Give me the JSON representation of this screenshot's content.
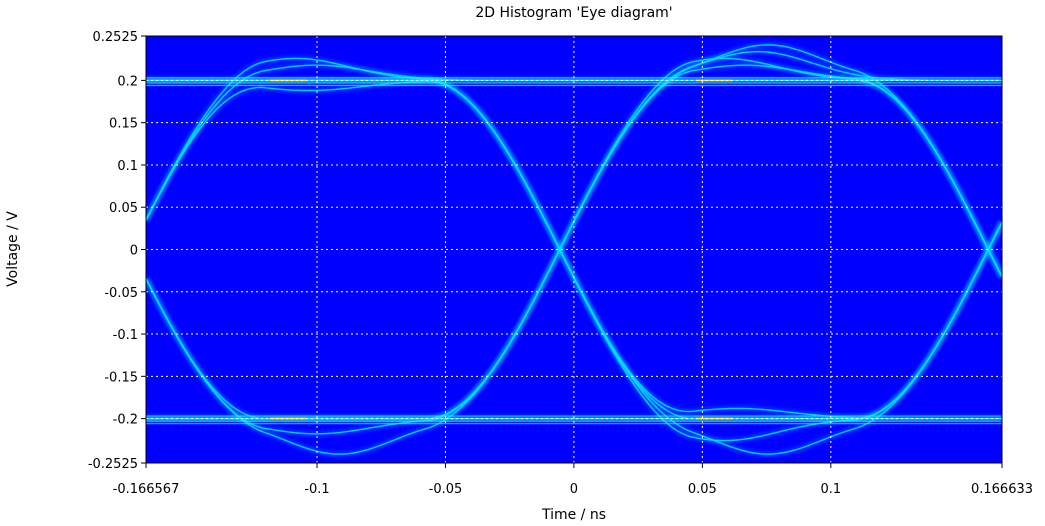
{
  "chart_data": {
    "type": "heatmap",
    "title": "2D Histogram 'Eye diagram'",
    "xlabel": "Time / ns",
    "ylabel": "Voltage / V",
    "xlim": [
      -0.166567,
      0.166633
    ],
    "ylim": [
      -0.2525,
      0.2525
    ],
    "xticks": [
      {
        "value": -0.166567,
        "label": "-0.166567"
      },
      {
        "value": -0.1,
        "label": "-0.1"
      },
      {
        "value": -0.05,
        "label": "-0.05"
      },
      {
        "value": 0,
        "label": "0"
      },
      {
        "value": 0.05,
        "label": "0.05"
      },
      {
        "value": 0.1,
        "label": "0.1"
      },
      {
        "value": 0.166633,
        "label": "0.166633"
      }
    ],
    "yticks": [
      {
        "value": 0.2525,
        "label": "0.2525"
      },
      {
        "value": 0.2,
        "label": "0.2"
      },
      {
        "value": 0.15,
        "label": "0.15"
      },
      {
        "value": 0.1,
        "label": "0.1"
      },
      {
        "value": 0.05,
        "label": "0.05"
      },
      {
        "value": 0,
        "label": "0"
      },
      {
        "value": -0.05,
        "label": "-0.05"
      },
      {
        "value": -0.1,
        "label": "-0.1"
      },
      {
        "value": -0.15,
        "label": "-0.15"
      },
      {
        "value": -0.2,
        "label": "-0.2"
      },
      {
        "value": -0.2525,
        "label": "-0.2525"
      }
    ],
    "grid": true,
    "background_color": "#0000ff",
    "trace_color": "#00e0ff",
    "hot_color": "#ff8800",
    "grid_color": "#ffffff",
    "levels": [
      0.2,
      -0.2
    ],
    "crossings": [
      -0.0055,
      0.1613
    ],
    "bit_period": 0.1668,
    "rise_half_width": 0.052
  }
}
